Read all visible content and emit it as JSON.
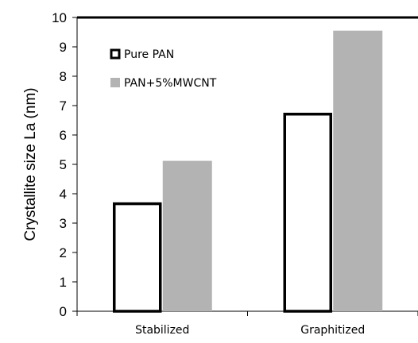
{
  "chart_data": {
    "type": "bar",
    "categories": [
      "Stabilized",
      "Graphitized"
    ],
    "series": [
      {
        "name": "Pure PAN",
        "values": [
          3.7,
          6.75
        ],
        "fill": "#ffffff",
        "stroke": "#000000"
      },
      {
        "name": "PAN+5%MWCNT",
        "values": [
          5.12,
          9.55
        ],
        "fill": "#b3b3b3",
        "stroke": "none"
      }
    ],
    "ylabel": "Crystallite size La (nm)",
    "ylim": [
      0,
      10
    ],
    "yticks": [
      0,
      1,
      2,
      3,
      4,
      5,
      6,
      7,
      8,
      9,
      10
    ],
    "grid": false,
    "legend_position": "top-left"
  }
}
